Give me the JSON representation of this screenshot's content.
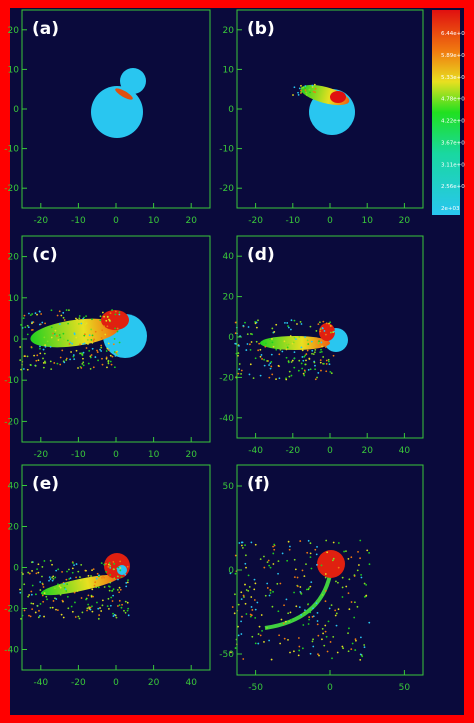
{
  "panels": [
    {
      "label": "(a)",
      "x_ticks": [
        "-20",
        "-10",
        "0",
        "10",
        "20"
      ],
      "y_ticks": [
        "20",
        "10",
        "0",
        "-10",
        "-20"
      ]
    },
    {
      "label": "(b)",
      "x_ticks": [
        "-20",
        "-10",
        "0",
        "10",
        "20"
      ],
      "y_ticks": [
        "20",
        "10",
        "0",
        "-10",
        "-20"
      ]
    },
    {
      "label": "(c)",
      "x_ticks": [
        "-20",
        "-10",
        "0",
        "10",
        "20"
      ],
      "y_ticks": [
        "20",
        "10",
        "0",
        "-10",
        "-20"
      ]
    },
    {
      "label": "(d)",
      "x_ticks": [
        "-40",
        "-20",
        "0",
        "20",
        "40"
      ],
      "y_ticks": [
        "40",
        "20",
        "0",
        "-20",
        "-40"
      ]
    },
    {
      "label": "(e)",
      "x_ticks": [
        "-40",
        "-20",
        "0",
        "20",
        "40"
      ],
      "y_ticks": [
        "40",
        "20",
        "0",
        "-20",
        "-40"
      ]
    },
    {
      "label": "(f)",
      "x_ticks": [
        "-50",
        "0",
        "50"
      ],
      "y_ticks": [
        "50",
        "0",
        "-50"
      ]
    }
  ],
  "colorbar": {
    "labels": [
      "6.44e+0",
      "5.89e+0",
      "5.33e+0",
      "4.78e+0",
      "4.22e+0",
      "3.67e+0",
      "3.11e+0",
      "2.56e+0",
      "2e+03"
    ]
  }
}
